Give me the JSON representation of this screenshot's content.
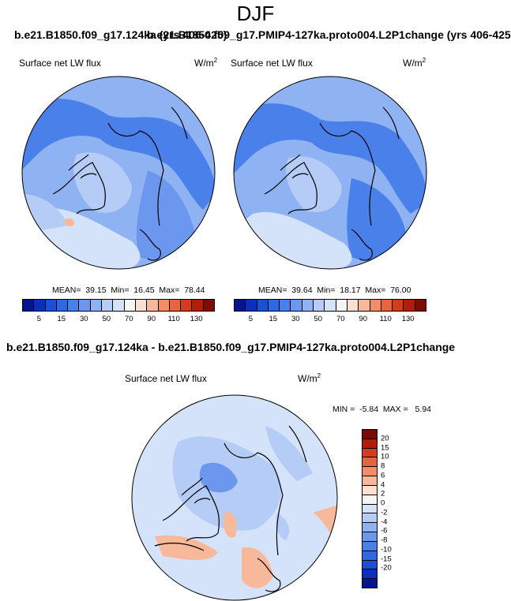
{
  "title": "DJF",
  "case_header_left": "b.e21.B1850.f09_g17.124ka (yrs 406-425)",
  "case_header_right": "b.e21.B1850.f09_g17.PMIP4-127ka.proto004.L2P1change (yrs 406-425)",
  "difference_header": "b.e21.B1850.f09_g17.124ka - b.e21.B1850.f09_g17.PMIP4-127ka.proto004.L2P1change",
  "panels": {
    "left": {
      "variable": "Surface net LW flux",
      "units_base": "W/m",
      "units_sup": "2",
      "stats": "MEAN=  39.15  Min=  16.45  Max=  78.44"
    },
    "right": {
      "variable": "Surface net LW flux",
      "units_base": "W/m",
      "units_sup": "2",
      "stats": "MEAN=  39.64  Min=  18.17  Max=  76.00"
    },
    "diff": {
      "variable": "Surface net LW flux",
      "units_base": "W/m",
      "units_sup": "2",
      "stats": "MIN =  -5.84  MAX =   5.94"
    }
  },
  "colorbar_abs": {
    "colors": [
      "#05158f",
      "#0a2fc0",
      "#1a4fd8",
      "#2e68e5",
      "#4a80ea",
      "#6b98ee",
      "#8fb2f2",
      "#b4ccf6",
      "#d5e3fa",
      "#f5f5f5",
      "#fbe0d2",
      "#f7b99a",
      "#f28e67",
      "#e8643e",
      "#d53b1f",
      "#b61c0e",
      "#800b03"
    ],
    "tick_labels": [
      "5",
      "15",
      "30",
      "50",
      "70",
      "90",
      "110",
      "130"
    ]
  },
  "colorbar_diff": {
    "colors": [
      "#7a0b03",
      "#b31a0c",
      "#d53b1f",
      "#e8643e",
      "#f28e67",
      "#f7b99a",
      "#fbe0d2",
      "#f5f5f5",
      "#d5e3fa",
      "#b4ccf6",
      "#8fb2f2",
      "#6b98ee",
      "#4a80ea",
      "#2e68e5",
      "#1a4fd8",
      "#0a2fc0",
      "#05158f"
    ],
    "tick_labels": [
      "20",
      "15",
      "10",
      "8",
      "6",
      "4",
      "2",
      "0",
      "-2",
      "-4",
      "-6",
      "-8",
      "-10",
      "-15",
      "-20"
    ]
  },
  "map_colors": {
    "base": "#8fb2f2",
    "mid": "#6b98ee",
    "deep": "#4a80ea",
    "pale": "#b4ccf6",
    "vpale": "#d5e3fa",
    "warm": "#f7b99a",
    "white": "#f5f5f5",
    "coast": "#000000"
  }
}
